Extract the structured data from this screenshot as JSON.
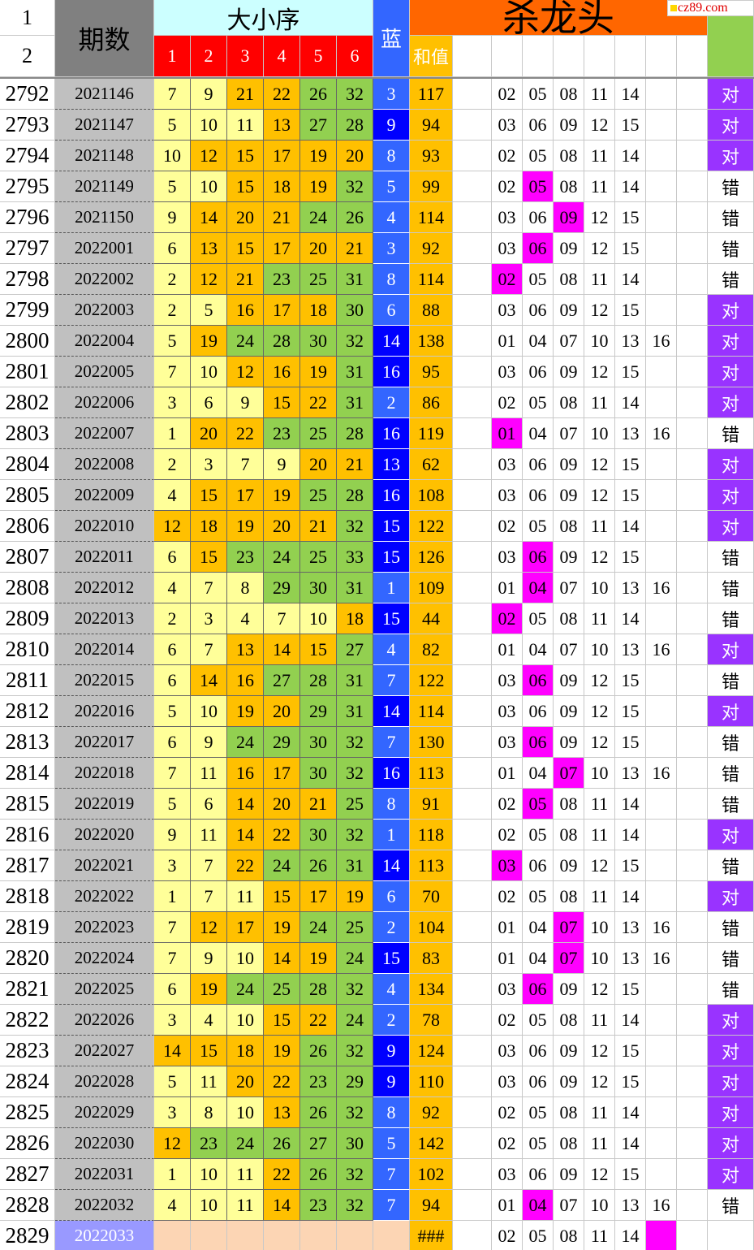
{
  "header": {
    "row_labels": [
      "1",
      "2"
    ],
    "period": "期数",
    "order": "大小序",
    "ball_cols": [
      "1",
      "2",
      "3",
      "4",
      "5",
      "6"
    ],
    "blue": "蓝",
    "sum": "和值",
    "kill_title": "杀龙头",
    "watermark": "cz89.com"
  },
  "rows": [
    {
      "n": "2792",
      "period": "2021146",
      "balls": [
        7,
        9,
        21,
        22,
        26,
        32
      ],
      "blue": 3,
      "sum": 117,
      "kills": [
        "02",
        "05",
        "08",
        "11",
        "14"
      ],
      "result": "对"
    },
    {
      "n": "2793",
      "period": "2021147",
      "balls": [
        5,
        10,
        11,
        13,
        27,
        28
      ],
      "blue": 9,
      "sum": 94,
      "kills": [
        "03",
        "06",
        "09",
        "12",
        "15"
      ],
      "result": "对"
    },
    {
      "n": "2794",
      "period": "2021148",
      "balls": [
        10,
        12,
        15,
        17,
        19,
        20
      ],
      "blue": 8,
      "sum": 93,
      "kills": [
        "02",
        "05",
        "08",
        "11",
        "14"
      ],
      "result": "对"
    },
    {
      "n": "2795",
      "period": "2021149",
      "balls": [
        5,
        10,
        15,
        18,
        19,
        32
      ],
      "blue": 5,
      "sum": 99,
      "kills": [
        "02",
        "05",
        "08",
        "11",
        "14"
      ],
      "result": "错"
    },
    {
      "n": "2796",
      "period": "2021150",
      "balls": [
        9,
        14,
        20,
        21,
        24,
        26
      ],
      "blue": 4,
      "sum": 114,
      "kills": [
        "03",
        "06",
        "09",
        "12",
        "15"
      ],
      "result": "错"
    },
    {
      "n": "2797",
      "period": "2022001",
      "balls": [
        6,
        13,
        15,
        17,
        20,
        21
      ],
      "blue": 3,
      "sum": 92,
      "kills": [
        "03",
        "06",
        "09",
        "12",
        "15"
      ],
      "result": "错"
    },
    {
      "n": "2798",
      "period": "2022002",
      "balls": [
        2,
        12,
        21,
        23,
        25,
        31
      ],
      "blue": 8,
      "sum": 114,
      "kills": [
        "02",
        "05",
        "08",
        "11",
        "14"
      ],
      "result": "错"
    },
    {
      "n": "2799",
      "period": "2022003",
      "balls": [
        2,
        5,
        16,
        17,
        18,
        30
      ],
      "blue": 6,
      "sum": 88,
      "kills": [
        "03",
        "06",
        "09",
        "12",
        "15"
      ],
      "result": "对"
    },
    {
      "n": "2800",
      "period": "2022004",
      "balls": [
        5,
        19,
        24,
        28,
        30,
        32
      ],
      "blue": 14,
      "sum": 138,
      "kills": [
        "01",
        "04",
        "07",
        "10",
        "13",
        "16"
      ],
      "result": "对"
    },
    {
      "n": "2801",
      "period": "2022005",
      "balls": [
        7,
        10,
        12,
        16,
        19,
        31
      ],
      "blue": 16,
      "sum": 95,
      "kills": [
        "03",
        "06",
        "09",
        "12",
        "15"
      ],
      "result": "对"
    },
    {
      "n": "2802",
      "period": "2022006",
      "balls": [
        3,
        6,
        9,
        15,
        22,
        31
      ],
      "blue": 2,
      "sum": 86,
      "kills": [
        "02",
        "05",
        "08",
        "11",
        "14"
      ],
      "result": "对"
    },
    {
      "n": "2803",
      "period": "2022007",
      "balls": [
        1,
        20,
        22,
        23,
        25,
        28
      ],
      "blue": 16,
      "sum": 119,
      "kills": [
        "01",
        "04",
        "07",
        "10",
        "13",
        "16"
      ],
      "result": "错"
    },
    {
      "n": "2804",
      "period": "2022008",
      "balls": [
        2,
        3,
        7,
        9,
        20,
        21
      ],
      "blue": 13,
      "sum": 62,
      "kills": [
        "03",
        "06",
        "09",
        "12",
        "15"
      ],
      "result": "对"
    },
    {
      "n": "2805",
      "period": "2022009",
      "balls": [
        4,
        15,
        17,
        19,
        25,
        28
      ],
      "blue": 16,
      "sum": 108,
      "kills": [
        "03",
        "06",
        "09",
        "12",
        "15"
      ],
      "result": "对"
    },
    {
      "n": "2806",
      "period": "2022010",
      "balls": [
        12,
        18,
        19,
        20,
        21,
        32
      ],
      "blue": 15,
      "sum": 122,
      "kills": [
        "02",
        "05",
        "08",
        "11",
        "14"
      ],
      "result": "对"
    },
    {
      "n": "2807",
      "period": "2022011",
      "balls": [
        6,
        15,
        23,
        24,
        25,
        33
      ],
      "blue": 15,
      "sum": 126,
      "kills": [
        "03",
        "06",
        "09",
        "12",
        "15"
      ],
      "result": "错"
    },
    {
      "n": "2808",
      "period": "2022012",
      "balls": [
        4,
        7,
        8,
        29,
        30,
        31
      ],
      "blue": 1,
      "sum": 109,
      "kills": [
        "01",
        "04",
        "07",
        "10",
        "13",
        "16"
      ],
      "result": "错"
    },
    {
      "n": "2809",
      "period": "2022013",
      "balls": [
        2,
        3,
        4,
        7,
        10,
        18
      ],
      "blue": 15,
      "sum": 44,
      "kills": [
        "02",
        "05",
        "08",
        "11",
        "14"
      ],
      "result": "错"
    },
    {
      "n": "2810",
      "period": "2022014",
      "balls": [
        6,
        7,
        13,
        14,
        15,
        27
      ],
      "blue": 4,
      "sum": 82,
      "kills": [
        "01",
        "04",
        "07",
        "10",
        "13",
        "16"
      ],
      "result": "对"
    },
    {
      "n": "2811",
      "period": "2022015",
      "balls": [
        6,
        14,
        16,
        27,
        28,
        31
      ],
      "blue": 7,
      "sum": 122,
      "kills": [
        "03",
        "06",
        "09",
        "12",
        "15"
      ],
      "result": "错"
    },
    {
      "n": "2812",
      "period": "2022016",
      "balls": [
        5,
        10,
        19,
        20,
        29,
        31
      ],
      "blue": 14,
      "sum": 114,
      "kills": [
        "03",
        "06",
        "09",
        "12",
        "15"
      ],
      "result": "对"
    },
    {
      "n": "2813",
      "period": "2022017",
      "balls": [
        6,
        9,
        24,
        29,
        30,
        32
      ],
      "blue": 7,
      "sum": 130,
      "kills": [
        "03",
        "06",
        "09",
        "12",
        "15"
      ],
      "result": "错"
    },
    {
      "n": "2814",
      "period": "2022018",
      "balls": [
        7,
        11,
        16,
        17,
        30,
        32
      ],
      "blue": 16,
      "sum": 113,
      "kills": [
        "01",
        "04",
        "07",
        "10",
        "13",
        "16"
      ],
      "result": "错"
    },
    {
      "n": "2815",
      "period": "2022019",
      "balls": [
        5,
        6,
        14,
        20,
        21,
        25
      ],
      "blue": 8,
      "sum": 91,
      "kills": [
        "02",
        "05",
        "08",
        "11",
        "14"
      ],
      "result": "错"
    },
    {
      "n": "2816",
      "period": "2022020",
      "balls": [
        9,
        11,
        14,
        22,
        30,
        32
      ],
      "blue": 1,
      "sum": 118,
      "kills": [
        "02",
        "05",
        "08",
        "11",
        "14"
      ],
      "result": "对"
    },
    {
      "n": "2817",
      "period": "2022021",
      "balls": [
        3,
        7,
        22,
        24,
        26,
        31
      ],
      "blue": 14,
      "sum": 113,
      "kills": [
        "03",
        "06",
        "09",
        "12",
        "15"
      ],
      "result": "错"
    },
    {
      "n": "2818",
      "period": "2022022",
      "balls": [
        1,
        7,
        11,
        15,
        17,
        19
      ],
      "blue": 6,
      "sum": 70,
      "kills": [
        "02",
        "05",
        "08",
        "11",
        "14"
      ],
      "result": "对"
    },
    {
      "n": "2819",
      "period": "2022023",
      "balls": [
        7,
        12,
        17,
        19,
        24,
        25
      ],
      "blue": 2,
      "sum": 104,
      "kills": [
        "01",
        "04",
        "07",
        "10",
        "13",
        "16"
      ],
      "result": "错"
    },
    {
      "n": "2820",
      "period": "2022024",
      "balls": [
        7,
        9,
        10,
        14,
        19,
        24
      ],
      "blue": 15,
      "sum": 83,
      "kills": [
        "01",
        "04",
        "07",
        "10",
        "13",
        "16"
      ],
      "result": "错"
    },
    {
      "n": "2821",
      "period": "2022025",
      "balls": [
        6,
        19,
        24,
        25,
        28,
        32
      ],
      "blue": 4,
      "sum": 134,
      "kills": [
        "03",
        "06",
        "09",
        "12",
        "15"
      ],
      "result": "错"
    },
    {
      "n": "2822",
      "period": "2022026",
      "balls": [
        3,
        4,
        10,
        15,
        22,
        24
      ],
      "blue": 2,
      "sum": 78,
      "kills": [
        "02",
        "05",
        "08",
        "11",
        "14"
      ],
      "result": "对"
    },
    {
      "n": "2823",
      "period": "2022027",
      "balls": [
        14,
        15,
        18,
        19,
        26,
        32
      ],
      "blue": 9,
      "sum": 124,
      "kills": [
        "03",
        "06",
        "09",
        "12",
        "15"
      ],
      "result": "对"
    },
    {
      "n": "2824",
      "period": "2022028",
      "balls": [
        5,
        11,
        20,
        22,
        23,
        29
      ],
      "blue": 9,
      "sum": 110,
      "kills": [
        "03",
        "06",
        "09",
        "12",
        "15"
      ],
      "result": "对"
    },
    {
      "n": "2825",
      "period": "2022029",
      "balls": [
        3,
        8,
        10,
        13,
        26,
        32
      ],
      "blue": 8,
      "sum": 92,
      "kills": [
        "02",
        "05",
        "08",
        "11",
        "14"
      ],
      "result": "对"
    },
    {
      "n": "2826",
      "period": "2022030",
      "balls": [
        12,
        23,
        24,
        26,
        27,
        30
      ],
      "blue": 5,
      "sum": 142,
      "kills": [
        "02",
        "05",
        "08",
        "11",
        "14"
      ],
      "result": "对"
    },
    {
      "n": "2827",
      "period": "2022031",
      "balls": [
        1,
        10,
        11,
        22,
        26,
        32
      ],
      "blue": 7,
      "sum": 102,
      "kills": [
        "03",
        "06",
        "09",
        "12",
        "15"
      ],
      "result": "对"
    },
    {
      "n": "2828",
      "period": "2022032",
      "balls": [
        4,
        10,
        11,
        14,
        23,
        32
      ],
      "blue": 7,
      "sum": 94,
      "kills": [
        "01",
        "04",
        "07",
        "10",
        "13",
        "16"
      ],
      "result": "错"
    },
    {
      "n": "2829",
      "period": "2022033",
      "sum": "###",
      "kills": [
        "02",
        "05",
        "08",
        "11",
        "14"
      ]
    }
  ]
}
